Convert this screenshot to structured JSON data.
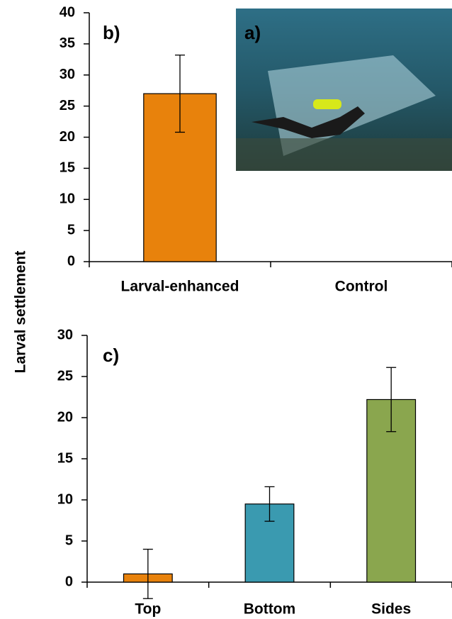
{
  "photo": {
    "label": "a)"
  },
  "chart_data": [
    {
      "type": "bar",
      "panel_label": "b)",
      "ylabel": "Larval settlement",
      "categories": [
        "Larval-enhanced",
        "Control"
      ],
      "values": [
        27,
        0
      ],
      "errors": [
        6.2,
        0
      ],
      "colors": [
        "#e8820c",
        "#e8820c"
      ],
      "ylim": [
        0,
        40
      ],
      "yticks": [
        0,
        5,
        10,
        15,
        20,
        25,
        30,
        35,
        40
      ]
    },
    {
      "type": "bar",
      "panel_label": "c)",
      "categories": [
        "Top",
        "Bottom",
        "Sides"
      ],
      "values": [
        1,
        9.5,
        22.2
      ],
      "errors": [
        3,
        2.1,
        3.9
      ],
      "colors": [
        "#e8820c",
        "#3a9ab0",
        "#8aa64e"
      ],
      "ylim": [
        0,
        30
      ],
      "yticks": [
        0,
        5,
        10,
        15,
        20,
        25,
        30
      ]
    }
  ]
}
